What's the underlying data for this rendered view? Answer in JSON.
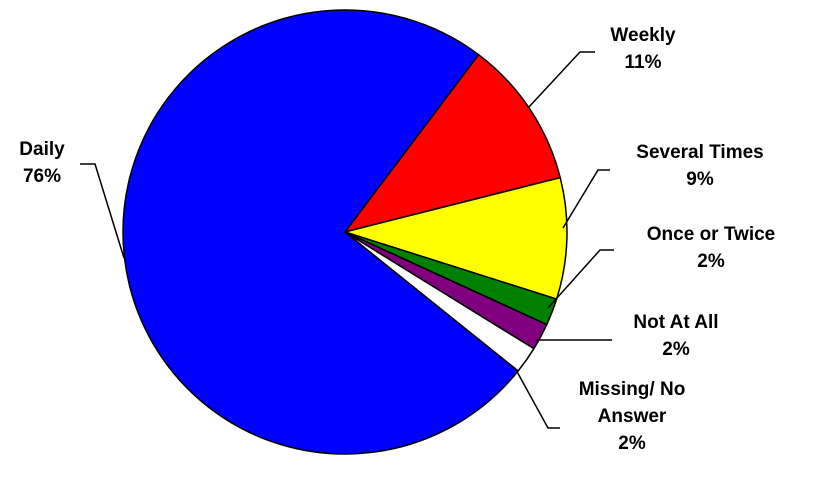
{
  "chart_data": {
    "type": "pie",
    "categories": [
      "Weekly",
      "Several Times",
      "Once or Twice",
      "Not At All",
      "Missing/ No Answer",
      "Daily"
    ],
    "values": [
      11,
      9,
      2,
      2,
      2,
      76
    ],
    "value_labels": [
      "11%",
      "9%",
      "2%",
      "2%",
      "2%",
      "76%"
    ],
    "colors": [
      "#ff0000",
      "#ffff00",
      "#008000",
      "#800080",
      "#ffffff",
      "#0000ff"
    ]
  }
}
